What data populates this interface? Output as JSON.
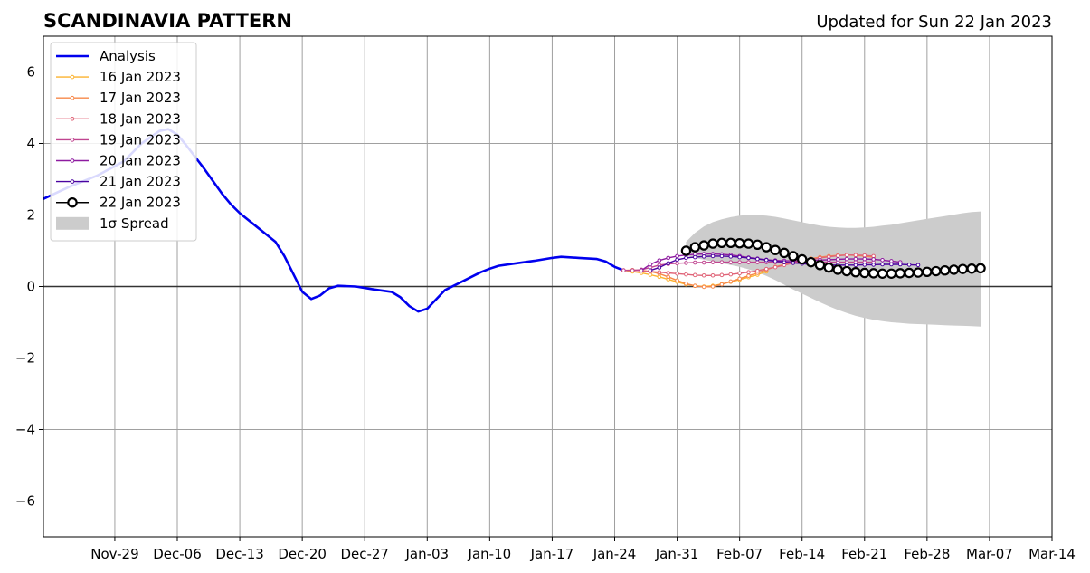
{
  "chart_data": {
    "type": "line",
    "title": "SCANDINAVIA PATTERN",
    "subtitle": "Updated for Sun 22 Jan 2023",
    "xlabel": "",
    "ylabel": "",
    "xlim": [
      "2022-11-21",
      "2023-03-14"
    ],
    "ylim": [
      -7,
      7
    ],
    "grid": true,
    "legend_position": "top-left",
    "x_ticks": [
      {
        "date": "2022-11-29",
        "label": "Nov-29"
      },
      {
        "date": "2022-12-06",
        "label": "Dec-06"
      },
      {
        "date": "2022-12-13",
        "label": "Dec-13"
      },
      {
        "date": "2022-12-20",
        "label": "Dec-20"
      },
      {
        "date": "2022-12-27",
        "label": "Dec-27"
      },
      {
        "date": "2023-01-03",
        "label": "Jan-03"
      },
      {
        "date": "2023-01-10",
        "label": "Jan-10"
      },
      {
        "date": "2023-01-17",
        "label": "Jan-17"
      },
      {
        "date": "2023-01-24",
        "label": "Jan-24"
      },
      {
        "date": "2023-01-31",
        "label": "Jan-31"
      },
      {
        "date": "2023-02-07",
        "label": "Feb-07"
      },
      {
        "date": "2023-02-14",
        "label": "Feb-14"
      },
      {
        "date": "2023-02-21",
        "label": "Feb-21"
      },
      {
        "date": "2023-02-28",
        "label": "Feb-28"
      },
      {
        "date": "2023-03-07",
        "label": "Mar-07"
      },
      {
        "date": "2023-03-14",
        "label": "Mar-14"
      }
    ],
    "y_ticks": [
      {
        "value": 6,
        "label": "6"
      },
      {
        "value": 4,
        "label": "4"
      },
      {
        "value": 2,
        "label": "2"
      },
      {
        "value": 0,
        "label": "0"
      },
      {
        "value": -2,
        "label": "−2"
      },
      {
        "value": -4,
        "label": "−4"
      },
      {
        "value": -6,
        "label": "−6"
      }
    ],
    "series": [
      {
        "name": "Analysis",
        "color": "#0000ee",
        "style": "line",
        "points": [
          [
            "2022-11-21",
            2.45
          ],
          [
            "2022-11-24",
            2.8
          ],
          [
            "2022-11-27",
            3.1
          ],
          [
            "2022-11-30",
            3.5
          ],
          [
            "2022-12-02",
            4.0
          ],
          [
            "2022-12-04",
            4.35
          ],
          [
            "2022-12-05",
            4.4
          ],
          [
            "2022-12-06",
            4.25
          ],
          [
            "2022-12-07",
            3.95
          ],
          [
            "2022-12-09",
            3.3
          ],
          [
            "2022-12-11",
            2.6
          ],
          [
            "2022-12-12",
            2.3
          ],
          [
            "2022-12-13",
            2.05
          ],
          [
            "2022-12-15",
            1.65
          ],
          [
            "2022-12-17",
            1.25
          ],
          [
            "2022-12-18",
            0.85
          ],
          [
            "2022-12-19",
            0.35
          ],
          [
            "2022-12-20",
            -0.15
          ],
          [
            "2022-12-21",
            -0.35
          ],
          [
            "2022-12-22",
            -0.25
          ],
          [
            "2022-12-23",
            -0.05
          ],
          [
            "2022-12-24",
            0.02
          ],
          [
            "2022-12-26",
            0.0
          ],
          [
            "2022-12-28",
            -0.08
          ],
          [
            "2022-12-30",
            -0.15
          ],
          [
            "2022-12-31",
            -0.3
          ],
          [
            "2023-01-01",
            -0.55
          ],
          [
            "2023-01-02",
            -0.7
          ],
          [
            "2023-01-03",
            -0.62
          ],
          [
            "2023-01-05",
            -0.1
          ],
          [
            "2023-01-07",
            0.15
          ],
          [
            "2023-01-09",
            0.4
          ],
          [
            "2023-01-10",
            0.5
          ],
          [
            "2023-01-11",
            0.58
          ],
          [
            "2023-01-13",
            0.65
          ],
          [
            "2023-01-15",
            0.72
          ],
          [
            "2023-01-17",
            0.8
          ],
          [
            "2023-01-18",
            0.83
          ],
          [
            "2023-01-20",
            0.8
          ],
          [
            "2023-01-22",
            0.77
          ],
          [
            "2023-01-23",
            0.7
          ],
          [
            "2023-01-24",
            0.55
          ],
          [
            "2023-01-25",
            0.45
          ]
        ]
      },
      {
        "name": "16 Jan 2023",
        "color": "#fcb22e",
        "style": "small-marker",
        "start": "2023-01-25",
        "values": [
          0.45,
          0.42,
          0.38,
          0.33,
          0.27,
          0.2,
          0.13,
          0.06,
          0.02,
          0.0,
          0.02,
          0.07,
          0.13,
          0.19,
          0.26,
          0.33,
          0.42
        ]
      },
      {
        "name": "17 Jan 2023",
        "color": "#f7884a",
        "style": "small-marker",
        "start": "2023-01-25",
        "values": [
          0.45,
          0.46,
          0.45,
          0.42,
          0.36,
          0.27,
          0.17,
          0.08,
          0.02,
          -0.01,
          0.0,
          0.06,
          0.14,
          0.22,
          0.3,
          0.38,
          0.47,
          0.55,
          0.62,
          0.68,
          0.73,
          0.78,
          0.82,
          0.85,
          0.87,
          0.88,
          0.87,
          0.85,
          0.82
        ]
      },
      {
        "name": "18 Jan 2023",
        "color": "#e06478",
        "style": "small-marker",
        "start": "2023-01-25",
        "values": [
          0.45,
          0.45,
          0.44,
          0.42,
          0.4,
          0.38,
          0.36,
          0.34,
          0.32,
          0.31,
          0.31,
          0.32,
          0.34,
          0.37,
          0.4,
          0.44,
          0.49,
          0.54,
          0.6,
          0.66,
          0.71,
          0.76,
          0.8,
          0.83,
          0.86,
          0.88,
          0.88,
          0.87,
          0.85
        ]
      },
      {
        "name": "19 Jan 2023",
        "color": "#c04590",
        "style": "small-marker",
        "start": "2023-01-25",
        "values": [
          0.45,
          0.45,
          0.47,
          0.53,
          0.6,
          0.63,
          0.65,
          0.66,
          0.67,
          0.67,
          0.68,
          0.68,
          0.68,
          0.68,
          0.68,
          0.68,
          0.68,
          0.68,
          0.68,
          0.68,
          0.68,
          0.68,
          0.68,
          0.68,
          0.68,
          0.68,
          0.68,
          0.68,
          0.68
        ]
      },
      {
        "name": "20 Jan 2023",
        "color": "#8e1ba0",
        "style": "small-marker",
        "start": "2023-01-27",
        "values": [
          0.45,
          0.62,
          0.73,
          0.8,
          0.85,
          0.88,
          0.9,
          0.91,
          0.91,
          0.9,
          0.88,
          0.85,
          0.81,
          0.78,
          0.75,
          0.73,
          0.72,
          0.72,
          0.72,
          0.73,
          0.74,
          0.75,
          0.76,
          0.77,
          0.77,
          0.77,
          0.76,
          0.74,
          0.71,
          0.68
        ]
      },
      {
        "name": "21 Jan 2023",
        "color": "#4a03a0",
        "style": "small-marker",
        "start": "2023-01-28",
        "values": [
          0.45,
          0.53,
          0.65,
          0.75,
          0.8,
          0.82,
          0.84,
          0.85,
          0.85,
          0.84,
          0.82,
          0.8,
          0.77,
          0.74,
          0.71,
          0.68,
          0.66,
          0.64,
          0.62,
          0.61,
          0.6,
          0.6,
          0.6,
          0.6,
          0.61,
          0.61,
          0.62,
          0.62,
          0.62,
          0.61,
          0.6
        ]
      },
      {
        "name": "22 Jan 2023",
        "color": "#000000",
        "style": "big-marker",
        "start": "2023-02-01",
        "values": [
          1.0,
          1.1,
          1.15,
          1.2,
          1.22,
          1.22,
          1.21,
          1.2,
          1.17,
          1.1,
          1.02,
          0.94,
          0.85,
          0.76,
          0.68,
          0.6,
          0.53,
          0.47,
          0.43,
          0.4,
          0.38,
          0.37,
          0.36,
          0.36,
          0.37,
          0.38,
          0.39,
          0.41,
          0.43,
          0.45,
          0.47,
          0.49,
          0.5,
          0.51
        ]
      }
    ],
    "spread": {
      "name": "1σ Spread",
      "color": "#cccccc",
      "start": "2023-02-01",
      "upper": [
        1.25,
        1.5,
        1.68,
        1.8,
        1.88,
        1.94,
        1.98,
        2.0,
        2.0,
        1.98,
        1.95,
        1.9,
        1.85,
        1.8,
        1.75,
        1.7,
        1.67,
        1.65,
        1.64,
        1.64,
        1.65,
        1.67,
        1.7,
        1.73,
        1.77,
        1.81,
        1.85,
        1.89,
        1.93,
        1.97,
        2.01,
        2.05,
        2.08,
        2.1
      ],
      "lower": [
        0.85,
        0.8,
        0.75,
        0.7,
        0.65,
        0.6,
        0.55,
        0.48,
        0.4,
        0.3,
        0.18,
        0.05,
        -0.08,
        -0.2,
        -0.32,
        -0.44,
        -0.55,
        -0.65,
        -0.74,
        -0.82,
        -0.88,
        -0.93,
        -0.97,
        -1.0,
        -1.02,
        -1.04,
        -1.05,
        -1.06,
        -1.07,
        -1.08,
        -1.09,
        -1.1,
        -1.11,
        -1.12
      ]
    }
  }
}
